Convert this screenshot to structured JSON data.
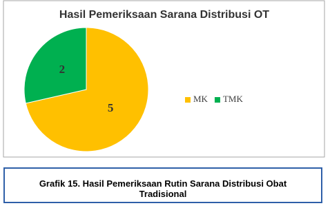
{
  "chart_data": {
    "type": "pie",
    "title": "Hasil Pemeriksaan Sarana Distribusi OT",
    "categories": [
      "MK",
      "TMK"
    ],
    "values": [
      5,
      2
    ],
    "colors": [
      "#ffc000",
      "#00b050"
    ],
    "legend": "right"
  },
  "caption": "Grafik 15. Hasil Pemeriksaan Rutin Sarana Distribusi Obat Tradisional"
}
